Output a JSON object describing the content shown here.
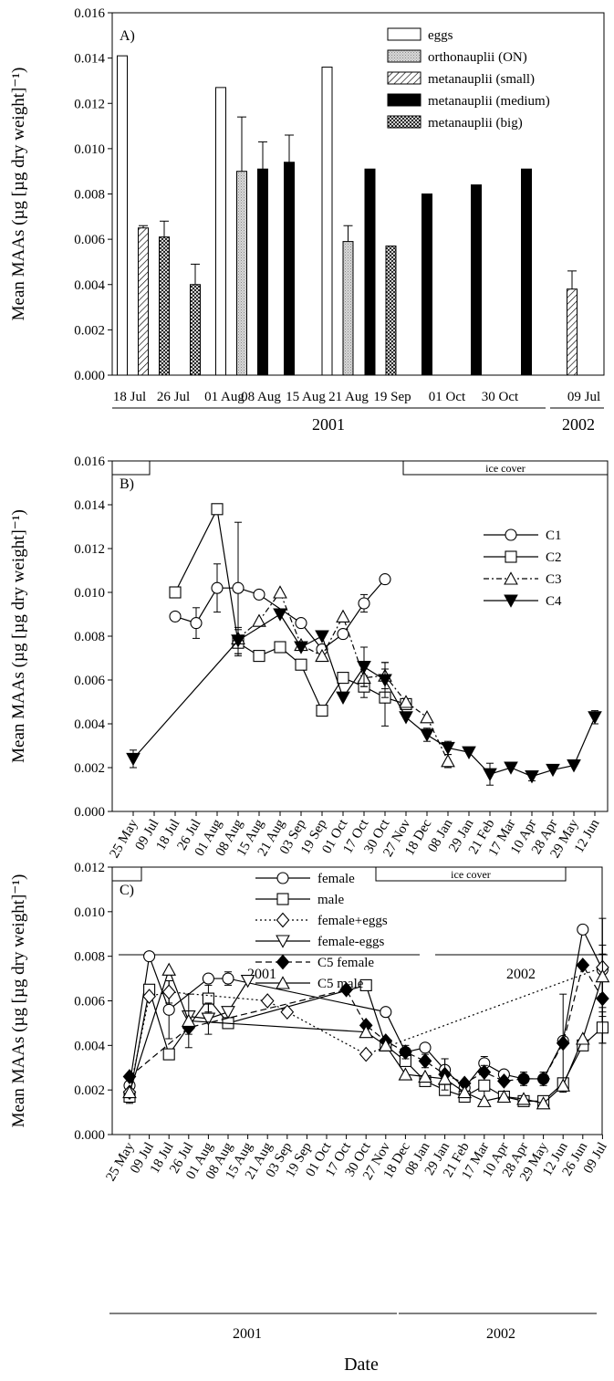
{
  "page": {
    "xlabel": "Date"
  },
  "chart_data": [
    {
      "id": "A",
      "type": "bar",
      "panel_label": "A)",
      "ylabel": "Mean MAAs (µg [µg dry weight]⁻¹)",
      "ylim": [
        0,
        0.016
      ],
      "yticks": [
        "0.000",
        "0.002",
        "0.004",
        "0.006",
        "0.008",
        "0.010",
        "0.012",
        "0.014",
        "0.016"
      ],
      "legend_position": "top-right",
      "categories": [
        "18 Jul",
        "26 Jul",
        "01 Aug",
        "08 Aug",
        "15 Aug",
        "21 Aug",
        "19 Sep",
        "01 Oct",
        "30 Oct",
        "09 Jul"
      ],
      "series": [
        {
          "name": "eggs",
          "pattern": "eggs",
          "values": [
            0.0141,
            null,
            0.0127,
            null,
            0.0136,
            null,
            null,
            null,
            null,
            null
          ]
        },
        {
          "name": "orthonauplii (ON)",
          "pattern": "on",
          "values": [
            null,
            null,
            0.009,
            null,
            0.0059,
            null,
            null,
            null,
            null,
            null
          ],
          "errors": [
            null,
            null,
            0.0024,
            null,
            0.0007,
            null,
            null,
            null,
            null,
            null
          ]
        },
        {
          "name": "metanauplii (small)",
          "pattern": "small",
          "values": [
            0.0065,
            null,
            null,
            null,
            null,
            null,
            null,
            null,
            null,
            0.0038
          ],
          "errors": [
            0.0001,
            null,
            null,
            null,
            null,
            null,
            null,
            null,
            null,
            0.0008
          ]
        },
        {
          "name": "metanauplii (medium)",
          "pattern": "medium",
          "values": [
            null,
            null,
            0.0091,
            0.0094,
            null,
            0.0091,
            0.008,
            0.0084,
            0.0091,
            null
          ],
          "errors": [
            null,
            null,
            0.0012,
            0.0012,
            null,
            null,
            null,
            null,
            null,
            null
          ]
        },
        {
          "name": "metanauplii (big)",
          "pattern": "big",
          "values": [
            0.0061,
            0.004,
            null,
            null,
            null,
            0.0057,
            null,
            null,
            null,
            null
          ],
          "errors": [
            0.0007,
            0.0009,
            null,
            null,
            null,
            null,
            null,
            null,
            null,
            null
          ]
        }
      ],
      "year_labels": [
        "2001",
        "2002"
      ]
    },
    {
      "id": "B",
      "type": "line",
      "panel_label": "B)",
      "ylabel": "Mean MAAs (µg [µg dry weight]⁻¹)",
      "ylim": [
        0,
        0.016
      ],
      "yticks": [
        "0.000",
        "0.002",
        "0.004",
        "0.006",
        "0.008",
        "0.010",
        "0.012",
        "0.014",
        "0.016"
      ],
      "band_label": "ice cover",
      "legend_position": "top-right",
      "categories": [
        "25 May",
        "09 Jul",
        "18 Jul",
        "26 Jul",
        "01 Aug",
        "08 Aug",
        "15 Aug",
        "21 Aug",
        "03 Sep",
        "19 Sep",
        "01 Oct",
        "17 Oct",
        "30 Oct",
        "27 Nov",
        "18 Dec",
        "08 Jan",
        "29 Jan",
        "21 Feb",
        "17 Mar",
        "10 Apr",
        "28 Apr",
        "29 May",
        "12 Jun"
      ],
      "series": [
        {
          "name": "C1",
          "marker": "circle",
          "dash": "",
          "values": [
            null,
            null,
            0.0089,
            0.0086,
            0.0102,
            0.0102,
            0.0099,
            null,
            0.0086,
            0.0074,
            0.0081,
            0.0095,
            0.0106,
            null,
            null,
            null,
            null,
            null,
            null,
            null,
            null,
            null,
            null
          ],
          "errors": [
            null,
            null,
            0,
            0.0007,
            0.0011,
            0.003,
            0,
            null,
            0,
            0,
            0,
            0.0004,
            0,
            null,
            null,
            null,
            null,
            null,
            null,
            null,
            null,
            null,
            null
          ]
        },
        {
          "name": "C2",
          "marker": "square",
          "dash": "",
          "values": [
            null,
            null,
            0.01,
            null,
            0.0138,
            0.0077,
            0.0071,
            0.0075,
            0.0067,
            0.0046,
            0.0061,
            0.0057,
            0.0052,
            0.0049,
            null,
            null,
            null,
            null,
            null,
            null,
            null,
            null,
            null
          ],
          "errors": [
            null,
            null,
            0,
            null,
            0,
            0.0006,
            0,
            0,
            0,
            0,
            0,
            0.0005,
            0.0013,
            0,
            null,
            null,
            null,
            null,
            null,
            null,
            null,
            null,
            null
          ]
        },
        {
          "name": "C3",
          "marker": "triangle",
          "dash": "6,3,2,3",
          "values": [
            null,
            null,
            null,
            null,
            null,
            0.0079,
            0.0087,
            0.01,
            0.0076,
            0.0071,
            0.0089,
            0.0061,
            0.0062,
            0.005,
            0.0043,
            0.0023,
            null,
            null,
            null,
            null,
            null,
            null,
            null
          ],
          "errors": [
            null,
            null,
            null,
            null,
            null,
            0,
            0,
            0,
            0,
            0,
            0,
            0.0004,
            0.0006,
            0,
            0,
            0.0003,
            null,
            null,
            null,
            null,
            null,
            null,
            null
          ]
        },
        {
          "name": "C4",
          "marker": "triangle-down-filled",
          "dash": "",
          "values": [
            0.0024,
            null,
            null,
            null,
            null,
            0.0078,
            null,
            0.009,
            0.0075,
            0.008,
            0.0052,
            0.0066,
            0.006,
            0.0043,
            0.0035,
            0.0029,
            0.0027,
            0.0017,
            0.002,
            0.0016,
            0.0019,
            0.0021,
            0.0043
          ],
          "errors": [
            0.0004,
            null,
            null,
            null,
            null,
            0.0006,
            null,
            0,
            0,
            0,
            0,
            0.0009,
            0.0008,
            0,
            0.0003,
            0.0003,
            0,
            0.0005,
            0,
            0.0002,
            0,
            0,
            0.0003
          ]
        }
      ],
      "year_labels": [
        "2001",
        "2002"
      ]
    },
    {
      "id": "C",
      "type": "line",
      "panel_label": "C)",
      "ylabel": "Mean MAAs (µg [µg dry weight]⁻¹)",
      "ylim": [
        0,
        0.012
      ],
      "yticks": [
        "0.000",
        "0.002",
        "0.004",
        "0.006",
        "0.008",
        "0.010",
        "0.012"
      ],
      "band_label": "ice cover",
      "legend_position": "top-center",
      "categories": [
        "25 May",
        "09 Jul",
        "18 Jul",
        "26 Jul",
        "01 Aug",
        "08 Aug",
        "15 Aug",
        "21 Aug",
        "03 Sep",
        "19 Sep",
        "01 Oct",
        "17 Oct",
        "30 Oct",
        "27 Nov",
        "18 Dec",
        "08 Jan",
        "29 Jan",
        "21 Feb",
        "17 Mar",
        "10 Apr",
        "28 Apr",
        "29 May",
        "12 Jun",
        "26 Jun",
        "09 Jul"
      ],
      "series": [
        {
          "name": "female",
          "marker": "circle",
          "dash": "",
          "values": [
            0.0022,
            0.008,
            0.0056,
            null,
            0.007,
            0.007,
            null,
            null,
            null,
            null,
            null,
            null,
            null,
            0.0055,
            0.0037,
            0.0039,
            0.0029,
            0.0021,
            0.0032,
            0.0027,
            0.0025,
            0.0025,
            0.0042,
            0.0092,
            0.0074
          ],
          "errors": [
            0.0004,
            0,
            0.0013,
            null,
            0,
            0.0003,
            null,
            null,
            null,
            null,
            null,
            null,
            null,
            0,
            0,
            0,
            0.0005,
            0,
            0.0003,
            0,
            0,
            0,
            0,
            0,
            0
          ]
        },
        {
          "name": "male",
          "marker": "square",
          "dash": "",
          "values": [
            0.0017,
            0.0065,
            0.0036,
            null,
            0.0061,
            0.005,
            null,
            null,
            null,
            null,
            null,
            null,
            0.0067,
            0.004,
            0.0033,
            0.0024,
            0.002,
            0.0017,
            0.0022,
            0.0017,
            0.0015,
            0.0015,
            0.0023,
            0.004,
            0.0048
          ],
          "errors": [
            0.0003,
            0,
            0,
            null,
            0.0006,
            0,
            null,
            null,
            null,
            null,
            null,
            null,
            0,
            0,
            0,
            0,
            0,
            0,
            0.0009,
            0,
            0,
            0,
            0,
            0,
            0.0007
          ]
        },
        {
          "name": "female+eggs",
          "marker": "diamond",
          "dash": "2,3",
          "values": [
            0.0019,
            0.0062,
            0.0064,
            null,
            null,
            null,
            null,
            0.006,
            0.0055,
            null,
            null,
            null,
            0.0036,
            null,
            null,
            null,
            null,
            null,
            null,
            null,
            null,
            null,
            null,
            null,
            0.0075
          ],
          "errors": [
            0,
            0,
            0.0005,
            null,
            null,
            null,
            null,
            0,
            0,
            null,
            null,
            null,
            0,
            null,
            null,
            null,
            null,
            null,
            null,
            null,
            null,
            null,
            null,
            null,
            0.0022
          ]
        },
        {
          "name": "female-eggs",
          "marker": "triangle-down",
          "dash": "",
          "values": [
            null,
            null,
            null,
            0.0053,
            0.0052,
            0.0055,
            0.0069,
            null,
            null,
            null,
            null,
            null,
            null,
            null,
            null,
            null,
            null,
            null,
            null,
            null,
            null,
            null,
            null,
            null,
            null
          ],
          "errors": [
            null,
            null,
            null,
            0,
            0.0007,
            0,
            0,
            null,
            null,
            null,
            null,
            null,
            null,
            null,
            null,
            null,
            null,
            null,
            null,
            null,
            null,
            null,
            null,
            null,
            null
          ]
        },
        {
          "name": "C5 female",
          "marker": "diamond-filled",
          "dash": "7,4",
          "values": [
            0.0026,
            null,
            null,
            0.0048,
            null,
            null,
            null,
            null,
            null,
            null,
            null,
            0.0065,
            0.0049,
            0.0042,
            0.0037,
            0.0033,
            0.0027,
            0.0023,
            0.0028,
            0.0024,
            0.0025,
            0.0025,
            0.0041,
            0.0076,
            0.0061
          ],
          "errors": [
            0,
            null,
            null,
            0.0003,
            null,
            null,
            null,
            null,
            null,
            null,
            null,
            0,
            0,
            0,
            0.0003,
            0.0003,
            0.0007,
            0,
            0,
            0,
            0.0003,
            0.0003,
            0.0022,
            0,
            0.002
          ]
        },
        {
          "name": "C5 male",
          "marker": "triangle",
          "dash": "",
          "values": [
            0.0019,
            null,
            0.0074,
            0.0051,
            null,
            null,
            null,
            null,
            null,
            null,
            null,
            null,
            0.0046,
            0.004,
            0.0027,
            0.0026,
            0.0025,
            0.0019,
            0.0015,
            0.0017,
            0.0016,
            0.0014,
            0.0022,
            0.0043,
            0.0071
          ],
          "errors": [
            0,
            null,
            0,
            0.0012,
            null,
            null,
            null,
            null,
            null,
            null,
            null,
            null,
            0,
            0,
            0,
            0,
            0,
            0,
            0,
            0,
            0,
            0,
            0,
            0,
            0.0014
          ]
        }
      ],
      "year_labels": [
        "2001",
        "2002"
      ]
    }
  ]
}
